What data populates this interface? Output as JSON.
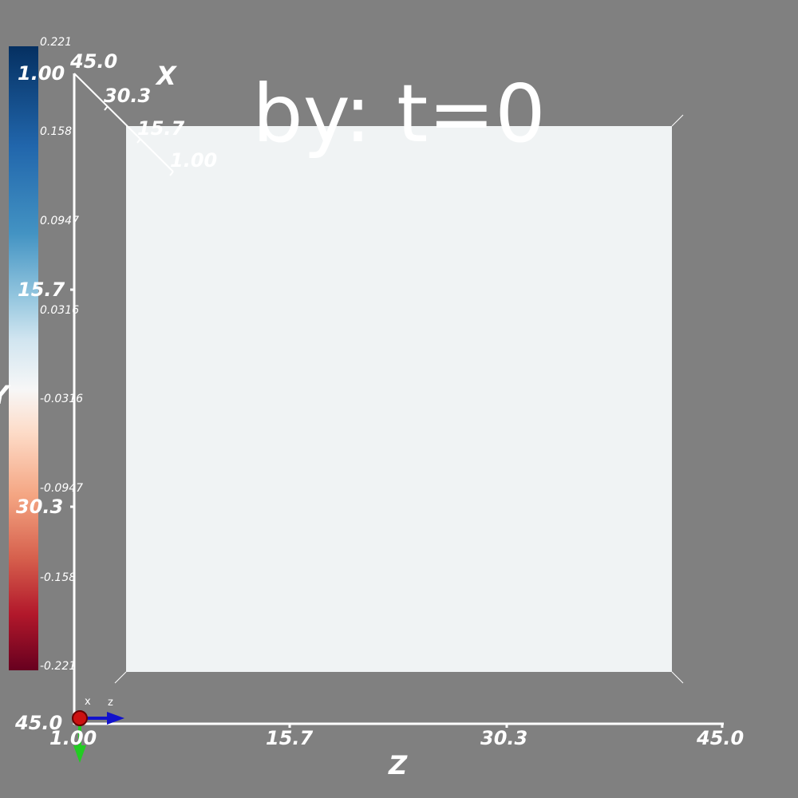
{
  "plot": {
    "title": "by: t=0",
    "slice_color": "#f0f3f4",
    "background": "#808080",
    "axes": {
      "x": {
        "name": "X",
        "ticks": [
          "45.0",
          "30.3",
          "15.7",
          "1.00"
        ]
      },
      "y": {
        "name": "Y",
        "ticks": [
          "1.00",
          "15.7",
          "30.3",
          "45.0"
        ]
      },
      "z": {
        "name": "Z",
        "ticks": [
          "1.00",
          "15.7",
          "30.3",
          "45.0"
        ]
      }
    },
    "colorbar": {
      "colormap": "RdBu",
      "min": -0.221,
      "max": 0.221,
      "labels": [
        "0.221",
        "0.158",
        "0.0947",
        "0.0316",
        "-0.0316",
        "-0.0947",
        "-0.158",
        "-0.221"
      ]
    },
    "orientation": {
      "x_label": "x",
      "z_label": "z",
      "colors": {
        "x": "#cc1111",
        "y": "#22cc22",
        "z": "#1111cc"
      }
    }
  }
}
